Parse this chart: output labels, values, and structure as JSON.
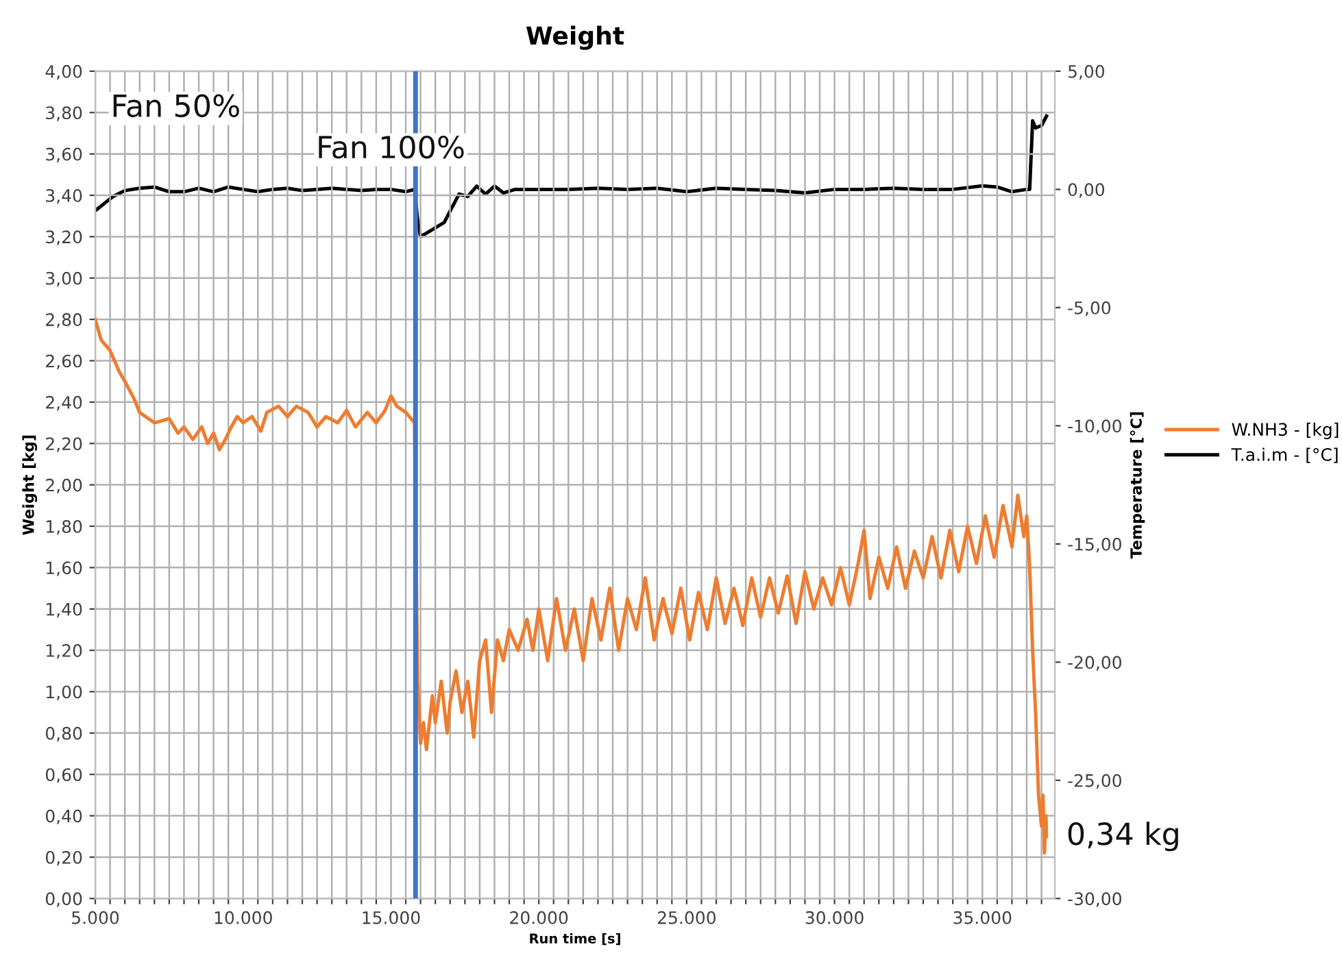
{
  "chart_data": {
    "type": "line",
    "title": "Weight",
    "xlabel": "Run time [s]",
    "ylabel": "Weight [kg]",
    "y2label": "Temperature [°C]",
    "annotations": [
      "Fan 50%",
      "Fan 100%",
      "0,34 kg"
    ],
    "series": [
      {
        "name": "W.NH3 - [kg]",
        "color": "#ed7d31",
        "x": [
          5000,
          5200,
          5500,
          5800,
          6000,
          6300,
          6500,
          6800,
          7000,
          7500,
          7800,
          8000,
          8300,
          8600,
          8800,
          9000,
          9200,
          9400,
          9600,
          9800,
          10000,
          10300,
          10600,
          10800,
          11200,
          11500,
          11800,
          12200,
          12500,
          12800,
          13200,
          13500,
          13800,
          14200,
          14500,
          14800,
          15000,
          15200,
          15500,
          15800,
          15900,
          16000,
          16100,
          16200,
          16400,
          16500,
          16700,
          16900,
          17000,
          17200,
          17400,
          17600,
          17800,
          18000,
          18200,
          18400,
          18600,
          18800,
          19000,
          19300,
          19600,
          19800,
          20000,
          20300,
          20600,
          20900,
          21200,
          21500,
          21800,
          22100,
          22400,
          22700,
          23000,
          23300,
          23600,
          23900,
          24200,
          24500,
          24800,
          25100,
          25400,
          25700,
          26000,
          26300,
          26600,
          26900,
          27200,
          27500,
          27800,
          28100,
          28400,
          28700,
          29000,
          29300,
          29600,
          29900,
          30200,
          30500,
          30800,
          31000,
          31200,
          31500,
          31800,
          32100,
          32400,
          32700,
          33000,
          33300,
          33600,
          33900,
          34200,
          34500,
          34800,
          35100,
          35400,
          35700,
          36000,
          36200,
          36400,
          36500,
          36600,
          36700,
          36800,
          36900,
          37000,
          37050,
          37100,
          37150,
          37170
        ],
        "values": [
          2.8,
          2.7,
          2.65,
          2.55,
          2.5,
          2.42,
          2.35,
          2.32,
          2.3,
          2.32,
          2.25,
          2.28,
          2.22,
          2.28,
          2.2,
          2.25,
          2.17,
          2.22,
          2.28,
          2.33,
          2.3,
          2.33,
          2.26,
          2.35,
          2.38,
          2.33,
          2.38,
          2.35,
          2.28,
          2.33,
          2.3,
          2.36,
          2.28,
          2.35,
          2.3,
          2.36,
          2.43,
          2.38,
          2.35,
          2.3,
          1.05,
          0.75,
          0.85,
          0.72,
          0.98,
          0.85,
          1.05,
          0.8,
          0.95,
          1.1,
          0.9,
          1.05,
          0.78,
          1.15,
          1.25,
          0.9,
          1.25,
          1.15,
          1.3,
          1.2,
          1.35,
          1.2,
          1.4,
          1.15,
          1.45,
          1.2,
          1.4,
          1.15,
          1.45,
          1.25,
          1.5,
          1.2,
          1.45,
          1.3,
          1.55,
          1.25,
          1.45,
          1.28,
          1.5,
          1.25,
          1.48,
          1.3,
          1.55,
          1.33,
          1.5,
          1.32,
          1.55,
          1.36,
          1.55,
          1.38,
          1.56,
          1.33,
          1.58,
          1.4,
          1.55,
          1.42,
          1.6,
          1.42,
          1.62,
          1.78,
          1.45,
          1.65,
          1.5,
          1.7,
          1.5,
          1.68,
          1.55,
          1.75,
          1.55,
          1.78,
          1.58,
          1.8,
          1.62,
          1.85,
          1.65,
          1.9,
          1.7,
          1.95,
          1.75,
          1.85,
          1.6,
          1.2,
          0.9,
          0.5,
          0.35,
          0.5,
          0.22,
          0.4,
          0.3
        ]
      },
      {
        "name": "T.a.i.m - [°C]",
        "color": "#000000",
        "axis": "y2",
        "x": [
          5000,
          5300,
          5600,
          6000,
          6500,
          7000,
          7500,
          8000,
          8500,
          9000,
          9500,
          10000,
          10500,
          11000,
          11500,
          12000,
          12500,
          13000,
          13500,
          14000,
          14500,
          15000,
          15500,
          15800,
          15900,
          16000,
          16400,
          16800,
          17300,
          17600,
          17900,
          18200,
          18500,
          18800,
          19200,
          20000,
          21000,
          22000,
          23000,
          24000,
          25000,
          26000,
          27000,
          28000,
          29000,
          30000,
          31000,
          32000,
          33000,
          34000,
          35000,
          35500,
          36000,
          36500,
          36600,
          36700,
          36800,
          37000,
          37170
        ],
        "values": [
          -0.9,
          -0.6,
          -0.3,
          -0.05,
          0.05,
          0.1,
          -0.1,
          -0.1,
          0.05,
          -0.1,
          0.1,
          0.0,
          -0.1,
          0.0,
          0.05,
          -0.05,
          0.0,
          0.05,
          0.0,
          -0.05,
          0.0,
          0.0,
          -0.1,
          0.0,
          -1.3,
          -2.0,
          -1.7,
          -1.4,
          -0.2,
          -0.3,
          0.14,
          -0.2,
          0.14,
          -0.15,
          0.0,
          0.0,
          0.0,
          0.05,
          0.0,
          0.05,
          -0.1,
          0.05,
          0.0,
          -0.05,
          -0.15,
          0.0,
          0.0,
          0.05,
          0.0,
          0.0,
          0.15,
          0.1,
          -0.1,
          0.0,
          0.0,
          2.9,
          2.6,
          2.7,
          3.1
        ]
      }
    ],
    "ref_lines": [
      {
        "axis": "x",
        "value": 15830,
        "color": "#4472c4"
      }
    ],
    "xlim": [
      5000,
      37450
    ],
    "xticks": [
      {
        "value": 5000,
        "label": "5.000"
      },
      {
        "value": 5500,
        "label": null
      },
      {
        "value": 6000,
        "label": null
      },
      {
        "value": 6500,
        "label": null
      },
      {
        "value": 7000,
        "label": null
      },
      {
        "value": 7500,
        "label": null
      },
      {
        "value": 8000,
        "label": null
      },
      {
        "value": 8500,
        "label": null
      },
      {
        "value": 9000,
        "label": null
      },
      {
        "value": 9500,
        "label": null
      },
      {
        "value": 10000,
        "label": "10.000"
      },
      {
        "value": 10500,
        "label": null
      },
      {
        "value": 11000,
        "label": null
      },
      {
        "value": 11500,
        "label": null
      },
      {
        "value": 12000,
        "label": null
      },
      {
        "value": 12500,
        "label": null
      },
      {
        "value": 13000,
        "label": null
      },
      {
        "value": 13500,
        "label": null
      },
      {
        "value": 14000,
        "label": null
      },
      {
        "value": 14500,
        "label": null
      },
      {
        "value": 15000,
        "label": "15.000"
      },
      {
        "value": 15500,
        "label": null
      },
      {
        "value": 16000,
        "label": null
      },
      {
        "value": 16500,
        "label": null
      },
      {
        "value": 17000,
        "label": null
      },
      {
        "value": 17500,
        "label": null
      },
      {
        "value": 18000,
        "label": null
      },
      {
        "value": 18500,
        "label": null
      },
      {
        "value": 19000,
        "label": null
      },
      {
        "value": 19500,
        "label": null
      },
      {
        "value": 20000,
        "label": "20.000"
      },
      {
        "value": 20500,
        "label": null
      },
      {
        "value": 21000,
        "label": null
      },
      {
        "value": 21500,
        "label": null
      },
      {
        "value": 22000,
        "label": null
      },
      {
        "value": 22500,
        "label": null
      },
      {
        "value": 23000,
        "label": null
      },
      {
        "value": 23500,
        "label": null
      },
      {
        "value": 24000,
        "label": null
      },
      {
        "value": 24500,
        "label": null
      },
      {
        "value": 25000,
        "label": "25.000"
      },
      {
        "value": 25500,
        "label": null
      },
      {
        "value": 26000,
        "label": null
      },
      {
        "value": 26500,
        "label": null
      },
      {
        "value": 27000,
        "label": null
      },
      {
        "value": 27500,
        "label": null
      },
      {
        "value": 28000,
        "label": null
      },
      {
        "value": 28500,
        "label": null
      },
      {
        "value": 29000,
        "label": null
      },
      {
        "value": 29500,
        "label": null
      },
      {
        "value": 30000,
        "label": "30.000"
      },
      {
        "value": 30500,
        "label": null
      },
      {
        "value": 31000,
        "label": null
      },
      {
        "value": 31500,
        "label": null
      },
      {
        "value": 32000,
        "label": null
      },
      {
        "value": 32500,
        "label": null
      },
      {
        "value": 33000,
        "label": null
      },
      {
        "value": 33500,
        "label": null
      },
      {
        "value": 34000,
        "label": null
      },
      {
        "value": 34500,
        "label": null
      },
      {
        "value": 35000,
        "label": "35.000"
      },
      {
        "value": 35500,
        "label": null
      },
      {
        "value": 36000,
        "label": null
      },
      {
        "value": 36500,
        "label": null
      },
      {
        "value": 37000,
        "label": null
      }
    ],
    "ylim": [
      0,
      4
    ],
    "yticks": [
      {
        "value": 0,
        "label": "0,00"
      },
      {
        "value": 0.2,
        "label": "0,20"
      },
      {
        "value": 0.4,
        "label": "0,40"
      },
      {
        "value": 0.6,
        "label": "0,60"
      },
      {
        "value": 0.8,
        "label": "0,80"
      },
      {
        "value": 1.0,
        "label": "1,00"
      },
      {
        "value": 1.2,
        "label": "1,20"
      },
      {
        "value": 1.4,
        "label": "1,40"
      },
      {
        "value": 1.6,
        "label": "1,60"
      },
      {
        "value": 1.8,
        "label": "1,80"
      },
      {
        "value": 2.0,
        "label": "2,00"
      },
      {
        "value": 2.2,
        "label": "2,20"
      },
      {
        "value": 2.4,
        "label": "2,40"
      },
      {
        "value": 2.6,
        "label": "2,60"
      },
      {
        "value": 2.8,
        "label": "2,80"
      },
      {
        "value": 3.0,
        "label": "3,00"
      },
      {
        "value": 3.2,
        "label": "3,20"
      },
      {
        "value": 3.4,
        "label": "3,40"
      },
      {
        "value": 3.6,
        "label": "3,60"
      },
      {
        "value": 3.8,
        "label": "3,80"
      },
      {
        "value": 4.0,
        "label": "4,00"
      }
    ],
    "y2lim": [
      -30,
      5
    ],
    "y2ticks": [
      {
        "value": -30,
        "label": "-30,00"
      },
      {
        "value": -25,
        "label": "-25,00"
      },
      {
        "value": -20,
        "label": "-20,00"
      },
      {
        "value": -15,
        "label": "-15,00"
      },
      {
        "value": -10,
        "label": "-10,00"
      },
      {
        "value": -5,
        "label": "-5,00"
      },
      {
        "value": 0,
        "label": "0,00"
      },
      {
        "value": 5,
        "label": "5,00"
      }
    ],
    "grid": true,
    "legend": "right",
    "line_style": "solid",
    "marker": "none"
  }
}
